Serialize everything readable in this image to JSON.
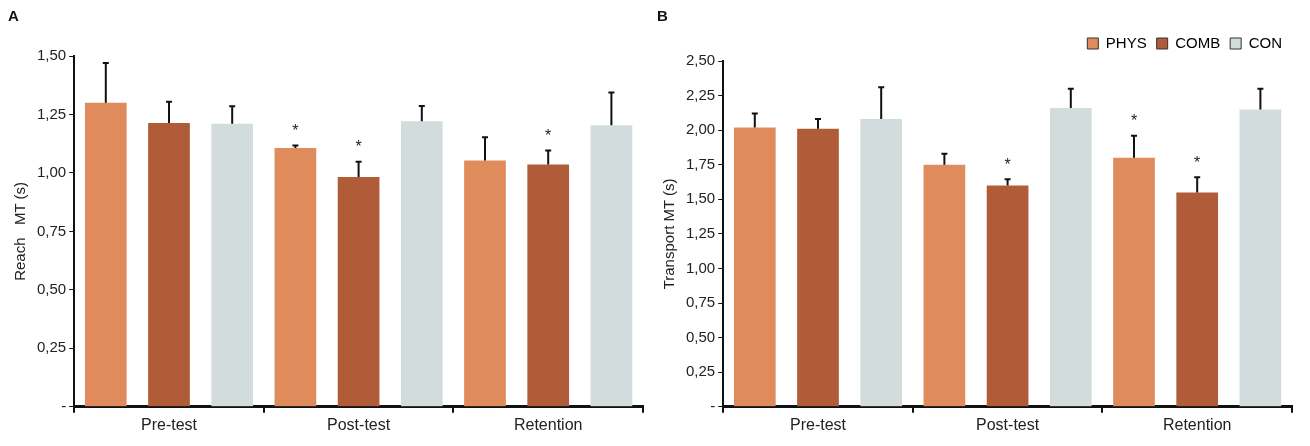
{
  "chart_data": [
    {
      "type": "bar",
      "title": "A",
      "ylabel": "Reach   MT (s)",
      "categories": [
        "Pre-test",
        "Post-test",
        "Retention"
      ],
      "series": [
        {
          "color": "#e08b5b",
          "values": [
            1.3,
            1.107,
            1.053
          ],
          "errors": [
            0.17,
            0.01,
            0.1
          ],
          "value_labels": [
            null,
            "*",
            null
          ]
        },
        {
          "color": "#b05c38",
          "values": [
            1.214,
            0.983,
            1.036
          ],
          "errors": [
            0.09,
            0.065,
            0.06
          ],
          "value_labels": [
            null,
            "*",
            "*"
          ]
        },
        {
          "color": "#d3dcdd",
          "values": [
            1.21,
            1.221,
            1.204
          ],
          "errors": [
            0.075,
            0.065,
            0.14
          ]
        }
      ],
      "ylim": [
        0,
        1.5
      ],
      "yticks": [
        {
          "value": 0,
          "label": "-"
        },
        {
          "value": 0.25,
          "label": "0,25"
        },
        {
          "value": 0.5,
          "label": "0,50"
        },
        {
          "value": 0.75,
          "label": "0,75"
        },
        {
          "value": 1,
          "label": "1,00"
        },
        {
          "value": 1.25,
          "label": "1,25"
        },
        {
          "value": 1.5,
          "label": "1,50"
        }
      ],
      "grid": false,
      "legend": false
    },
    {
      "type": "bar",
      "title": "B",
      "ylabel": "Transport MT (s)",
      "categories": [
        "Pre-test",
        "Post-test",
        "Retention"
      ],
      "series": [
        {
          "name": "PHYS",
          "color": "#e08b5b",
          "values": [
            2.02,
            1.75,
            1.8
          ],
          "errors": [
            0.1,
            0.08,
            0.16
          ],
          "value_labels": [
            null,
            null,
            "*"
          ]
        },
        {
          "name": "COMB",
          "color": "#b05c38",
          "values": [
            2.01,
            1.6,
            1.55
          ],
          "errors": [
            0.07,
            0.045,
            0.11
          ],
          "value_labels": [
            null,
            "*",
            "*"
          ]
        },
        {
          "name": "CON",
          "color": "#d3dcdd",
          "values": [
            2.08,
            2.16,
            2.15
          ],
          "errors": [
            0.23,
            0.14,
            0.15
          ]
        }
      ],
      "ylim": [
        0,
        2.5
      ],
      "yticks": [
        {
          "value": 0,
          "label": "-"
        },
        {
          "value": 0.25,
          "label": "0,25"
        },
        {
          "value": 0.5,
          "label": "0,50"
        },
        {
          "value": 0.75,
          "label": "0,75"
        },
        {
          "value": 1,
          "label": "1,00"
        },
        {
          "value": 1.25,
          "label": "1,25"
        },
        {
          "value": 1.5,
          "label": "1,50"
        },
        {
          "value": 1.75,
          "label": "1,75"
        },
        {
          "value": 2,
          "label": "2,00"
        },
        {
          "value": 2.25,
          "label": "2,25"
        },
        {
          "value": 2.5,
          "label": "2,50"
        }
      ],
      "grid": false,
      "legend": "top right"
    }
  ]
}
